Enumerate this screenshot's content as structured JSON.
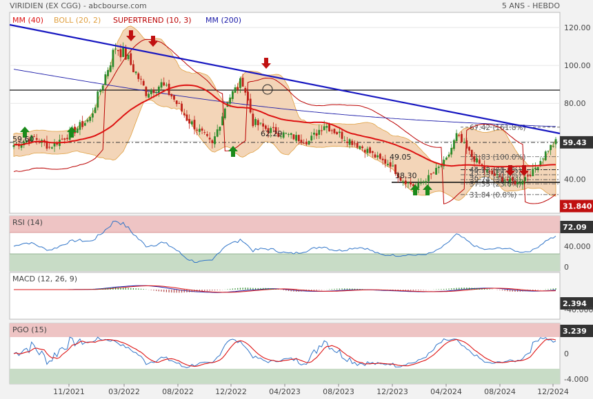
{
  "header": {
    "title": "VIRIDIEN (EX CGG) - abcbourse.com",
    "period": "5 ANS - HEBDO",
    "legend": [
      {
        "text": "MM (40)",
        "color": "#dd1111"
      },
      {
        "text": "BOLL (20, 2)",
        "color": "#e0a040"
      },
      {
        "text": "SUPERTREND (10, 3)",
        "color": "#bb0000"
      },
      {
        "text": "MM (200)",
        "color": "#1a1aa8"
      }
    ]
  },
  "x_axis": [
    "11/2021",
    "03/2022",
    "08/2022",
    "12/2022",
    "04/2023",
    "08/2023",
    "12/2023",
    "04/2024",
    "08/2024",
    "12/2024"
  ],
  "chart_data": [
    {
      "type": "candlestick",
      "title": "",
      "y_ticks": [
        "120.00",
        "100.00",
        "80.00",
        "60.00",
        "40.00"
      ],
      "ylim": [
        22,
        128
      ],
      "last_price": "59.43",
      "supertrend_value": "31.840",
      "annotations": [
        "59.60",
        "62.29",
        "49.05",
        "38.30"
      ],
      "fibonacci": [
        "67.42 (161.8%)",
        "51.83 (100.0%)",
        "45.12 (78.6%)",
        "44.93 (61.8%)",
        "42.33 (50.0%)",
        "39.74 (38.2%)",
        "37.55 (23.6%)",
        "31.84 (0.0%)"
      ],
      "series_summary": {
        "start": 58,
        "peak": 112,
        "low": 36,
        "end": 59.43
      },
      "indicators": [
        "MM (40)",
        "BOLL (20, 2)",
        "SUPERTREND (10, 3)",
        "MM (200)"
      ]
    },
    {
      "type": "line",
      "title": "RSI (14)",
      "y_ticks": [
        "40.000",
        "0"
      ],
      "last": "72.09",
      "levels": [
        30,
        70
      ]
    },
    {
      "type": "line",
      "title": "MACD (12, 26, 9)",
      "y_ticks": [
        "-40.000"
      ],
      "last": "2.394"
    },
    {
      "type": "line",
      "title": "PGO (15)",
      "y_ticks": [
        "0",
        "-4.000"
      ],
      "last": "3.239"
    }
  ],
  "colors": {
    "price_up": "#2a8a2a",
    "price_down": "#c02018",
    "band": "#f2d2b4",
    "mm200": "#1a1aa8",
    "trendline": "#1515c0",
    "rsi": "#2f74c8",
    "badge_price": "#333333",
    "badge_st": "#c01010"
  }
}
